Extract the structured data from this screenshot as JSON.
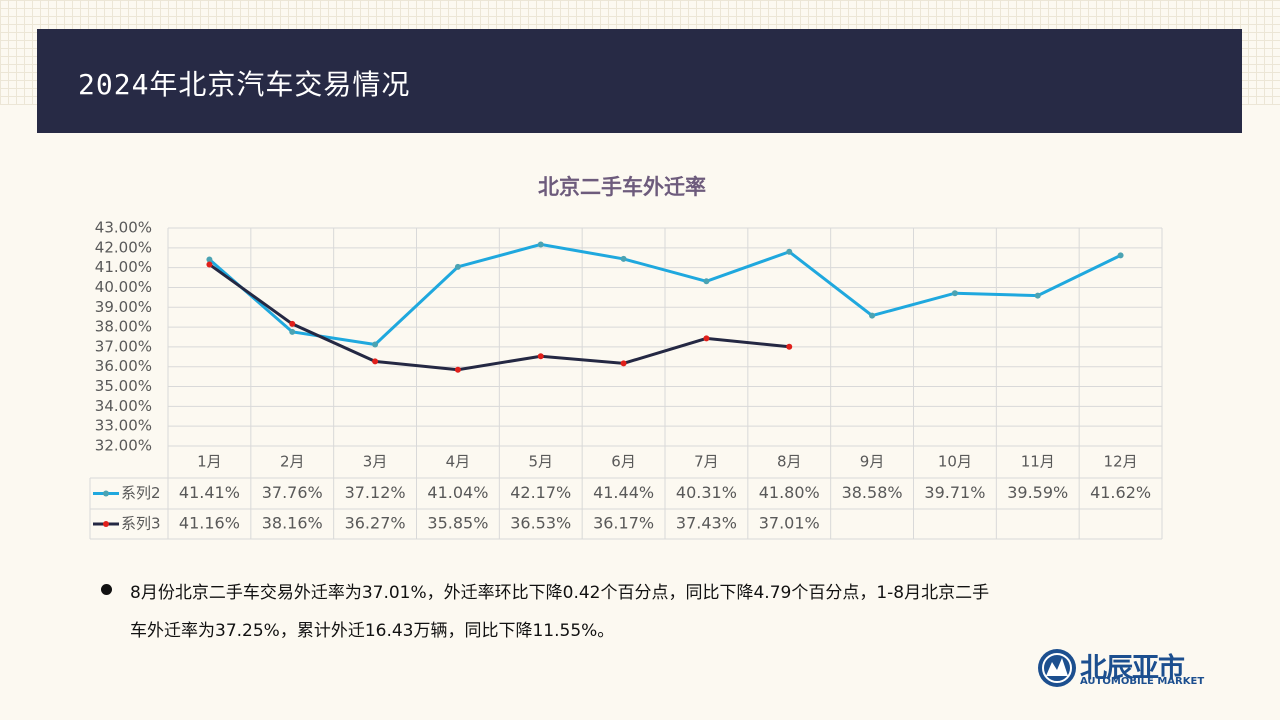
{
  "header": {
    "title": "2024年北京汽车交易情况"
  },
  "chart_data": {
    "type": "line",
    "title": "北京二手车外迁率",
    "categories": [
      "1月",
      "2月",
      "3月",
      "4月",
      "5月",
      "6月",
      "7月",
      "8月",
      "9月",
      "10月",
      "11月",
      "12月"
    ],
    "series": [
      {
        "name": "系列2",
        "color": "#1fa8de",
        "marker_color": "#4ba3b3",
        "values": [
          41.41,
          37.76,
          37.12,
          41.04,
          42.17,
          41.44,
          40.31,
          41.8,
          38.58,
          39.71,
          39.59,
          41.62
        ],
        "value_labels": [
          "41.41%",
          "37.76%",
          "37.12%",
          "41.04%",
          "42.17%",
          "41.44%",
          "40.31%",
          "41.80%",
          "38.58%",
          "39.71%",
          "39.59%",
          "41.62%"
        ]
      },
      {
        "name": "系列3",
        "color": "#242843",
        "marker_color": "#e0201b",
        "values": [
          41.16,
          38.16,
          36.27,
          35.85,
          36.53,
          36.17,
          37.43,
          37.01,
          null,
          null,
          null,
          null
        ],
        "value_labels": [
          "41.16%",
          "38.16%",
          "36.27%",
          "35.85%",
          "36.53%",
          "36.17%",
          "37.43%",
          "37.01%",
          null,
          null,
          null,
          null
        ]
      }
    ],
    "ylim": [
      32,
      43
    ],
    "yticks": [
      {
        "value": 32,
        "label": "32.00%"
      },
      {
        "value": 33,
        "label": "33.00%"
      },
      {
        "value": 34,
        "label": "34.00%"
      },
      {
        "value": 35,
        "label": "35.00%"
      },
      {
        "value": 36,
        "label": "36.00%"
      },
      {
        "value": 37,
        "label": "37.00%"
      },
      {
        "value": 38,
        "label": "38.00%"
      },
      {
        "value": 39,
        "label": "39.00%"
      },
      {
        "value": 40,
        "label": "40.00%"
      },
      {
        "value": 41,
        "label": "41.00%"
      },
      {
        "value": 42,
        "label": "42.00%"
      },
      {
        "value": 43,
        "label": "43.00%"
      }
    ],
    "grid": true,
    "legend": "table"
  },
  "notes": {
    "lines": [
      "8月份北京二手车交易外迁率为37.01%，外迁率环比下降0.42个百分点，同比下降4.79个百分点，1-8月北京二手",
      "车外迁率为37.25%，累计外迁16.43万辆，同比下降11.55%。"
    ]
  },
  "logo": {
    "name": "北辰亚市",
    "subtitle": "AUTOMOBILE MARKET"
  }
}
